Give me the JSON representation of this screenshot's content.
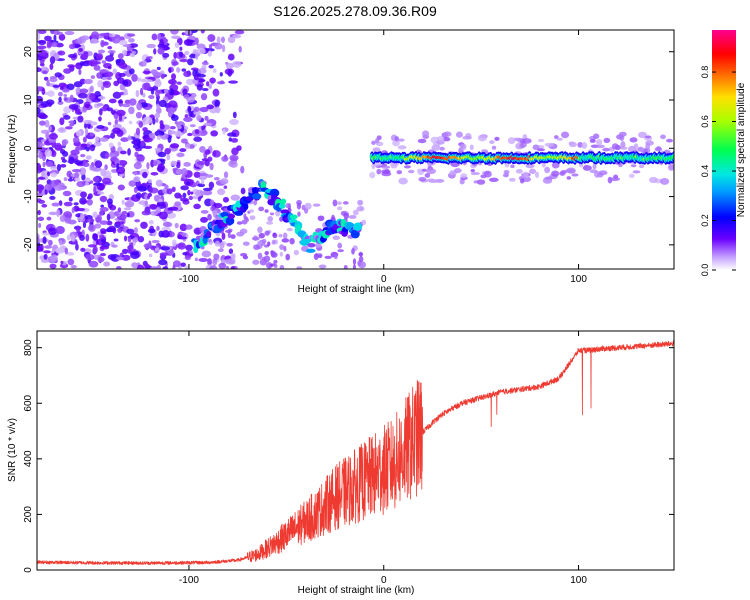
{
  "figure": {
    "title": "S126.2025.278.09.36.R09"
  },
  "chart_data": [
    {
      "type": "heatmap",
      "title": "S126.2025.278.09.36.R09",
      "xlabel": "Height of straight line (km)",
      "ylabel": "Frequency (Hz)",
      "xlim": [
        -178,
        149
      ],
      "ylim": [
        -25,
        24.5
      ],
      "xticks": [
        -100,
        0,
        100
      ],
      "yticks": [
        -20,
        -10,
        0,
        10,
        20
      ],
      "colorbar": {
        "label": "Normalized spectral amplitude",
        "range": [
          0,
          0.97
        ],
        "ticks": [
          0.0,
          0.2,
          0.4,
          0.6,
          0.8
        ],
        "colors": [
          "#ffffff",
          "#6a00ff",
          "#0000ff",
          "#00c8ff",
          "#00ff6a",
          "#dcff00",
          "#ff6400",
          "#ff0000",
          "#ff0090"
        ]
      },
      "features": {
        "noise_region_x": [
          -178,
          -80
        ],
        "noise_amplitude": 0.15,
        "tone_track": {
          "x": [
            -6,
            149
          ],
          "frequency": -2,
          "peak_amplitude": 0.85,
          "peak_x": [
            10,
            100
          ]
        },
        "swept_track": {
          "x": [
            -97,
            -62,
            -52,
            -38,
            -26,
            -12
          ],
          "frequency": [
            -20,
            -8,
            -12,
            -20,
            -16,
            -17
          ],
          "peak_amplitude": 0.45
        }
      },
      "grid": false
    },
    {
      "type": "line",
      "title": "",
      "xlabel": "Height of straight line (km)",
      "ylabel": "SNR (10 * v/v)",
      "xlim": [
        -178,
        149
      ],
      "ylim": [
        0,
        860
      ],
      "xticks": [
        -100,
        0,
        100
      ],
      "yticks": [
        0,
        200,
        400,
        600,
        800
      ],
      "color": "#ee3a30",
      "series": [
        {
          "x": [
            -178,
            -150,
            -120,
            -90,
            -75,
            -65,
            -55,
            -45,
            -35,
            -25,
            -15,
            -5,
            5,
            15,
            25,
            30,
            40,
            50,
            60,
            70,
            80,
            90,
            95,
            100,
            105,
            110,
            120,
            130,
            140,
            149
          ],
          "values": [
            28,
            26,
            25,
            27,
            35,
            55,
            100,
            150,
            200,
            260,
            300,
            340,
            380,
            460,
            530,
            560,
            600,
            620,
            640,
            650,
            660,
            690,
            740,
            790,
            790,
            795,
            800,
            805,
            810,
            815
          ]
        }
      ],
      "grid": false
    }
  ]
}
